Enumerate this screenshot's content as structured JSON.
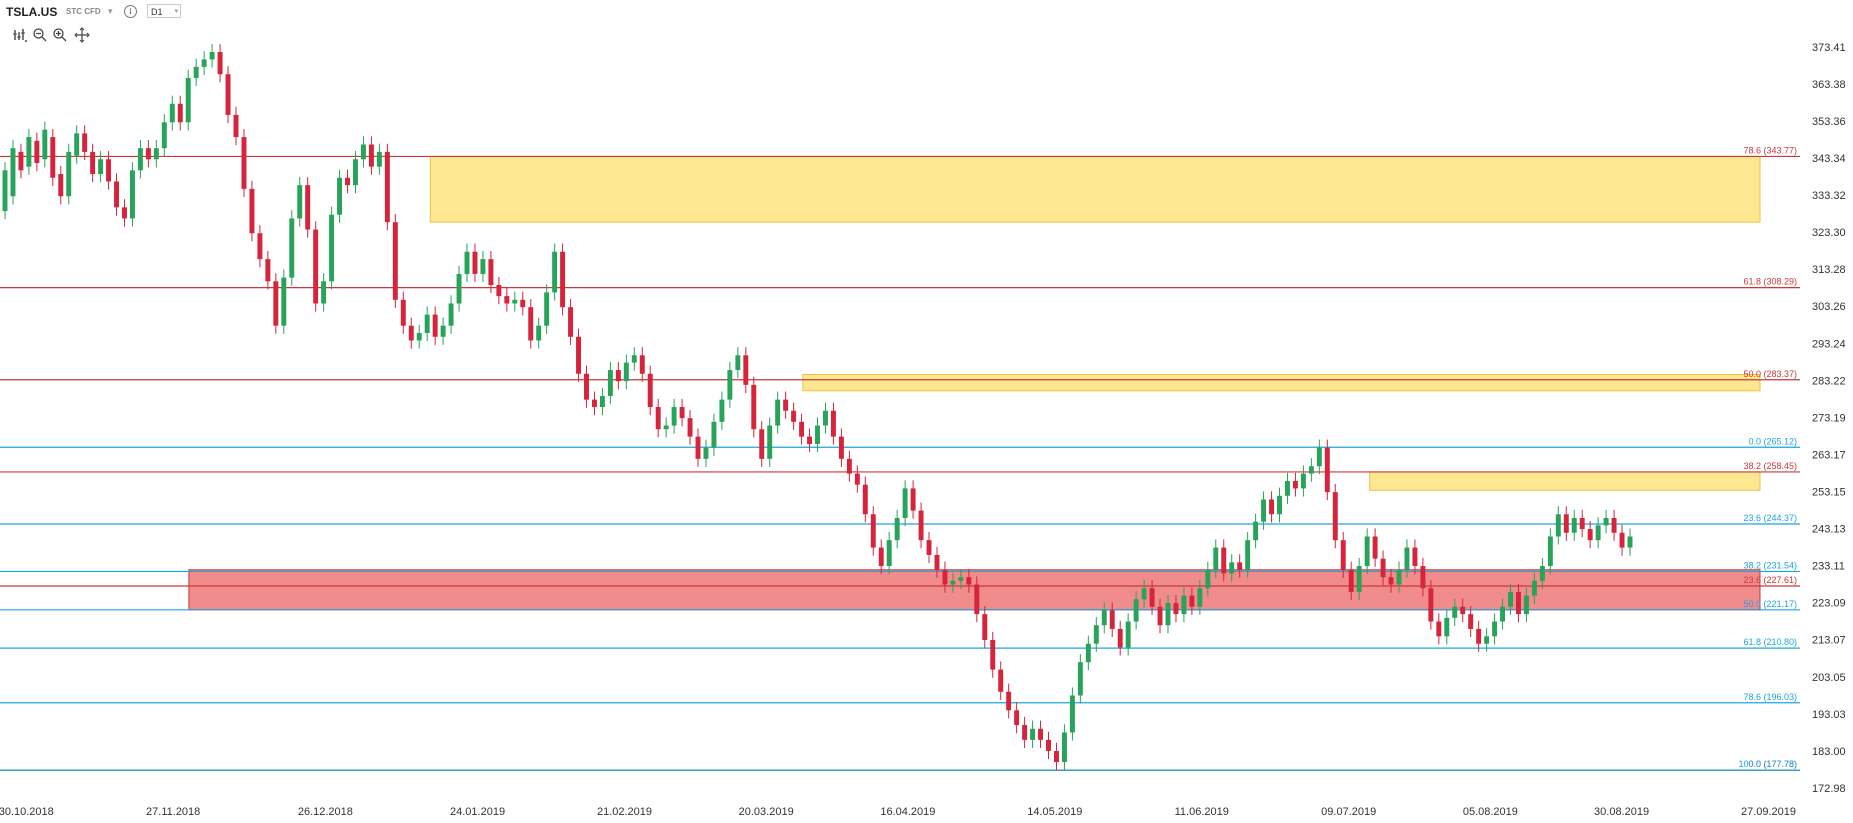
{
  "toolbar": {
    "symbol": "TSLA.US",
    "subtitle": "STC CFD",
    "timeframe": "D1"
  },
  "icons": [
    "bars-settings-icon",
    "zoom-out-icon",
    "zoom-in-icon",
    "crosshair-icon",
    "info-icon",
    "chevron-down-icon"
  ],
  "colors": {
    "up": "#27a35a",
    "down": "#d5243b",
    "fib_red": "#c9383a",
    "fib_blue": "#1da5df",
    "zone_yellow": "#fde68a",
    "zone_red": "#f08080"
  },
  "chart_data": {
    "type": "candlestick",
    "title": "",
    "xlabel": "",
    "ylabel": "",
    "ylim": [
      172.98,
      378.5
    ],
    "yticks": [
      "373.41",
      "363.38",
      "353.36",
      "343.34",
      "333.32",
      "323.30",
      "313.28",
      "303.26",
      "293.24",
      "283.22",
      "273.19",
      "263.17",
      "253.15",
      "243.13",
      "233.11",
      "223.09",
      "213.07",
      "203.05",
      "193.03",
      "183.00",
      "172.98"
    ],
    "xticks": [
      {
        "label": "30.10.2018",
        "date": "2018-10-30"
      },
      {
        "label": "27.11.2018",
        "date": "2018-11-27"
      },
      {
        "label": "26.12.2018",
        "date": "2018-12-26"
      },
      {
        "label": "24.01.2019",
        "date": "2019-01-24"
      },
      {
        "label": "21.02.2019",
        "date": "2019-02-21"
      },
      {
        "label": "20.03.2019",
        "date": "2019-03-20"
      },
      {
        "label": "16.04.2019",
        "date": "2019-04-16"
      },
      {
        "label": "14.05.2019",
        "date": "2019-05-14"
      },
      {
        "label": "11.06.2019",
        "date": "2019-06-11"
      },
      {
        "label": "09.07.2019",
        "date": "2019-07-09"
      },
      {
        "label": "05.08.2019",
        "date": "2019-08-05"
      },
      {
        "label": "30.08.2019",
        "date": "2019-08-30"
      },
      {
        "label": "27.09.2019",
        "date": "2019-09-27"
      }
    ],
    "xrange": [
      "2018-10-25",
      "2019-10-03"
    ],
    "levels": [
      {
        "label": "78.6 (343.77)",
        "value": 343.77,
        "color": "red"
      },
      {
        "label": "61.8 (308.29)",
        "value": 308.29,
        "color": "red"
      },
      {
        "label": "50.0 (283.37)",
        "value": 283.37,
        "color": "red"
      },
      {
        "label": "0.0 (265.12)",
        "value": 265.12,
        "color": "blue"
      },
      {
        "label": "38.2 (258.45)",
        "value": 258.45,
        "color": "red"
      },
      {
        "label": "23.6 (244.37)",
        "value": 244.37,
        "color": "blue"
      },
      {
        "label": "38.2 (231.54)",
        "value": 231.54,
        "color": "blue"
      },
      {
        "label": "23.6 (227.61)",
        "value": 227.61,
        "color": "red"
      },
      {
        "label": "50.0 (221.17)",
        "value": 221.17,
        "color": "blue"
      },
      {
        "label": "61.8 (210.80)",
        "value": 210.8,
        "color": "blue"
      },
      {
        "label": "78.6 (196.03)",
        "value": 196.03,
        "color": "blue"
      },
      {
        "label": "0.0 (177.78)",
        "value": 177.78,
        "color": "red"
      },
      {
        "label": "100.0 (177.78)",
        "value": 177.78,
        "color": "blue"
      }
    ],
    "zones": [
      {
        "from": "2019-01-15",
        "low": 326.0,
        "high": 343.77,
        "color": "yellow"
      },
      {
        "from": "2019-03-27",
        "low": 280.4,
        "high": 284.8,
        "color": "yellow"
      },
      {
        "from": "2019-07-13",
        "low": 253.5,
        "high": 258.45,
        "color": "yellow"
      },
      {
        "from": "2018-11-30",
        "low": 221.17,
        "high": 232.0,
        "color": "red"
      }
    ],
    "candles": [
      [
        329.0,
        340.0
      ],
      [
        333.0,
        346.0
      ],
      [
        345.0,
        340.0
      ],
      [
        341.0,
        349.0
      ],
      [
        348.0,
        342.0
      ],
      [
        343.0,
        351.0
      ],
      [
        349.0,
        338.0
      ],
      [
        339.0,
        333.0
      ],
      [
        333.0,
        345.0
      ],
      [
        344.0,
        350.0
      ],
      [
        350.0,
        345.0
      ],
      [
        345.0,
        339.0
      ],
      [
        339.0,
        343.0
      ],
      [
        343.0,
        337.0
      ],
      [
        337.0,
        330.0
      ],
      [
        330.0,
        327.0
      ],
      [
        327.0,
        340.0
      ],
      [
        340.0,
        346.0
      ],
      [
        346.0,
        343.0
      ],
      [
        343.0,
        346.0
      ],
      [
        346.0,
        353.0
      ],
      [
        353.0,
        358.0
      ],
      [
        358.0,
        353.0
      ],
      [
        353.0,
        365.0
      ],
      [
        365.0,
        368.0
      ],
      [
        368.0,
        370.0
      ],
      [
        370.0,
        372.0
      ],
      [
        372.0,
        366.0
      ],
      [
        366.0,
        355.0
      ],
      [
        355.0,
        349.0
      ],
      [
        349.0,
        335.0
      ],
      [
        335.0,
        323.0
      ],
      [
        323.0,
        316.0
      ],
      [
        316.0,
        310.0
      ],
      [
        310.0,
        298.0
      ],
      [
        298.0,
        311.0
      ],
      [
        311.0,
        327.0
      ],
      [
        327.0,
        336.0
      ],
      [
        336.0,
        324.0
      ],
      [
        324.0,
        304.0
      ],
      [
        304.0,
        310.0
      ],
      [
        310.0,
        328.0
      ],
      [
        328.0,
        338.0
      ],
      [
        338.0,
        336.0
      ],
      [
        336.0,
        343.0
      ],
      [
        343.0,
        347.0
      ],
      [
        347.0,
        341.0
      ],
      [
        341.0,
        345.0
      ],
      [
        345.0,
        326.0
      ],
      [
        326.0,
        305.0
      ],
      [
        305.0,
        298.0
      ],
      [
        298.0,
        294.0
      ],
      [
        294.0,
        296.0
      ],
      [
        296.0,
        301.0
      ],
      [
        301.0,
        295.0
      ],
      [
        295.0,
        298.0
      ],
      [
        298.0,
        304.0
      ],
      [
        304.0,
        312.0
      ],
      [
        312.0,
        318.0
      ],
      [
        318.0,
        312.0
      ],
      [
        312.0,
        316.0
      ],
      [
        316.0,
        309.0
      ],
      [
        309.0,
        306.0
      ],
      [
        306.0,
        304.0
      ],
      [
        304.0,
        305.0
      ],
      [
        305.0,
        303.0
      ],
      [
        303.0,
        294.0
      ],
      [
        294.0,
        298.0
      ],
      [
        298.0,
        307.0
      ],
      [
        307.0,
        318.0
      ],
      [
        318.0,
        303.0
      ],
      [
        303.0,
        295.0
      ],
      [
        295.0,
        285.0
      ],
      [
        285.0,
        278.0
      ],
      [
        278.0,
        276.0
      ],
      [
        276.0,
        279.0
      ],
      [
        279.0,
        286.0
      ],
      [
        286.0,
        283.0
      ],
      [
        283.0,
        288.0
      ],
      [
        288.0,
        290.0
      ],
      [
        290.0,
        285.0
      ],
      [
        285.0,
        276.0
      ],
      [
        276.0,
        270.0
      ],
      [
        270.0,
        271.0
      ],
      [
        271.0,
        276.0
      ],
      [
        276.0,
        273.0
      ],
      [
        273.0,
        268.0
      ],
      [
        268.0,
        262.0
      ],
      [
        262.0,
        265.0
      ],
      [
        265.0,
        272.0
      ],
      [
        272.0,
        278.0
      ],
      [
        278.0,
        286.0
      ],
      [
        286.0,
        290.0
      ],
      [
        290.0,
        282.0
      ],
      [
        282.0,
        270.0
      ],
      [
        270.0,
        262.0
      ],
      [
        262.0,
        271.0
      ],
      [
        271.0,
        278.0
      ],
      [
        278.0,
        275.0
      ],
      [
        275.0,
        272.0
      ],
      [
        272.0,
        268.0
      ],
      [
        268.0,
        266.0
      ],
      [
        266.0,
        271.0
      ],
      [
        271.0,
        275.0
      ],
      [
        275.0,
        268.0
      ],
      [
        268.0,
        262.0
      ],
      [
        262.0,
        258.0
      ],
      [
        258.0,
        255.0
      ],
      [
        255.0,
        247.0
      ],
      [
        247.0,
        238.0
      ],
      [
        238.0,
        233.0
      ],
      [
        233.0,
        240.0
      ],
      [
        240.0,
        246.0
      ],
      [
        246.0,
        254.0
      ],
      [
        254.0,
        248.0
      ],
      [
        248.0,
        240.0
      ],
      [
        240.0,
        236.0
      ],
      [
        236.0,
        232.0
      ],
      [
        232.0,
        228.0
      ],
      [
        228.0,
        229.0
      ],
      [
        229.0,
        230.0
      ],
      [
        230.0,
        228.0
      ],
      [
        228.0,
        220.0
      ],
      [
        220.0,
        213.0
      ],
      [
        213.0,
        205.0
      ],
      [
        205.0,
        199.0
      ],
      [
        199.0,
        194.0
      ],
      [
        194.0,
        190.0
      ],
      [
        190.0,
        186.0
      ],
      [
        186.0,
        189.0
      ],
      [
        189.0,
        186.0
      ],
      [
        186.0,
        183.0
      ],
      [
        183.0,
        180.0
      ],
      [
        180.0,
        188.0
      ],
      [
        188.0,
        198.0
      ],
      [
        198.0,
        207.0
      ],
      [
        207.0,
        212.0
      ],
      [
        212.0,
        217.0
      ],
      [
        217.0,
        221.0
      ],
      [
        221.0,
        216.0
      ],
      [
        216.0,
        211.0
      ],
      [
        211.0,
        218.0
      ],
      [
        218.0,
        224.0
      ],
      [
        224.0,
        227.0
      ],
      [
        227.0,
        222.0
      ],
      [
        222.0,
        217.0
      ],
      [
        217.0,
        223.0
      ],
      [
        223.0,
        220.0
      ],
      [
        220.0,
        225.0
      ],
      [
        225.0,
        222.0
      ],
      [
        222.0,
        227.0
      ],
      [
        227.0,
        232.0
      ],
      [
        232.0,
        238.0
      ],
      [
        238.0,
        231.0
      ],
      [
        231.0,
        234.0
      ],
      [
        234.0,
        232.0
      ],
      [
        232.0,
        240.0
      ],
      [
        240.0,
        245.0
      ],
      [
        245.0,
        251.0
      ],
      [
        251.0,
        247.0
      ],
      [
        247.0,
        252.0
      ],
      [
        252.0,
        256.0
      ],
      [
        256.0,
        254.0
      ],
      [
        254.0,
        258.0
      ],
      [
        258.0,
        260.0
      ],
      [
        260.0,
        265.0
      ],
      [
        265.0,
        253.0
      ],
      [
        253.0,
        240.0
      ],
      [
        240.0,
        232.0
      ],
      [
        232.0,
        226.0
      ],
      [
        226.0,
        233.0
      ],
      [
        233.0,
        241.0
      ],
      [
        241.0,
        235.0
      ],
      [
        235.0,
        230.0
      ],
      [
        230.0,
        228.0
      ],
      [
        228.0,
        232.0
      ],
      [
        232.0,
        238.0
      ],
      [
        238.0,
        233.0
      ],
      [
        233.0,
        227.0
      ],
      [
        227.0,
        218.0
      ],
      [
        218.0,
        214.0
      ],
      [
        214.0,
        219.0
      ],
      [
        219.0,
        222.0
      ],
      [
        222.0,
        220.0
      ],
      [
        220.0,
        216.0
      ],
      [
        216.0,
        212.0
      ],
      [
        212.0,
        214.0
      ],
      [
        214.0,
        218.0
      ],
      [
        218.0,
        222.0
      ],
      [
        222.0,
        226.0
      ],
      [
        226.0,
        220.0
      ],
      [
        220.0,
        225.0
      ],
      [
        225.0,
        229.0
      ],
      [
        229.0,
        233.0
      ],
      [
        233.0,
        241.0
      ],
      [
        241.0,
        247.0
      ],
      [
        247.0,
        242.0
      ],
      [
        242.0,
        246.0
      ],
      [
        246.0,
        243.0
      ],
      [
        243.0,
        240.0
      ],
      [
        240.0,
        244.0
      ],
      [
        244.0,
        246.0
      ],
      [
        246.0,
        242.0
      ],
      [
        242.0,
        238.0
      ],
      [
        238.0,
        241.0
      ]
    ]
  }
}
